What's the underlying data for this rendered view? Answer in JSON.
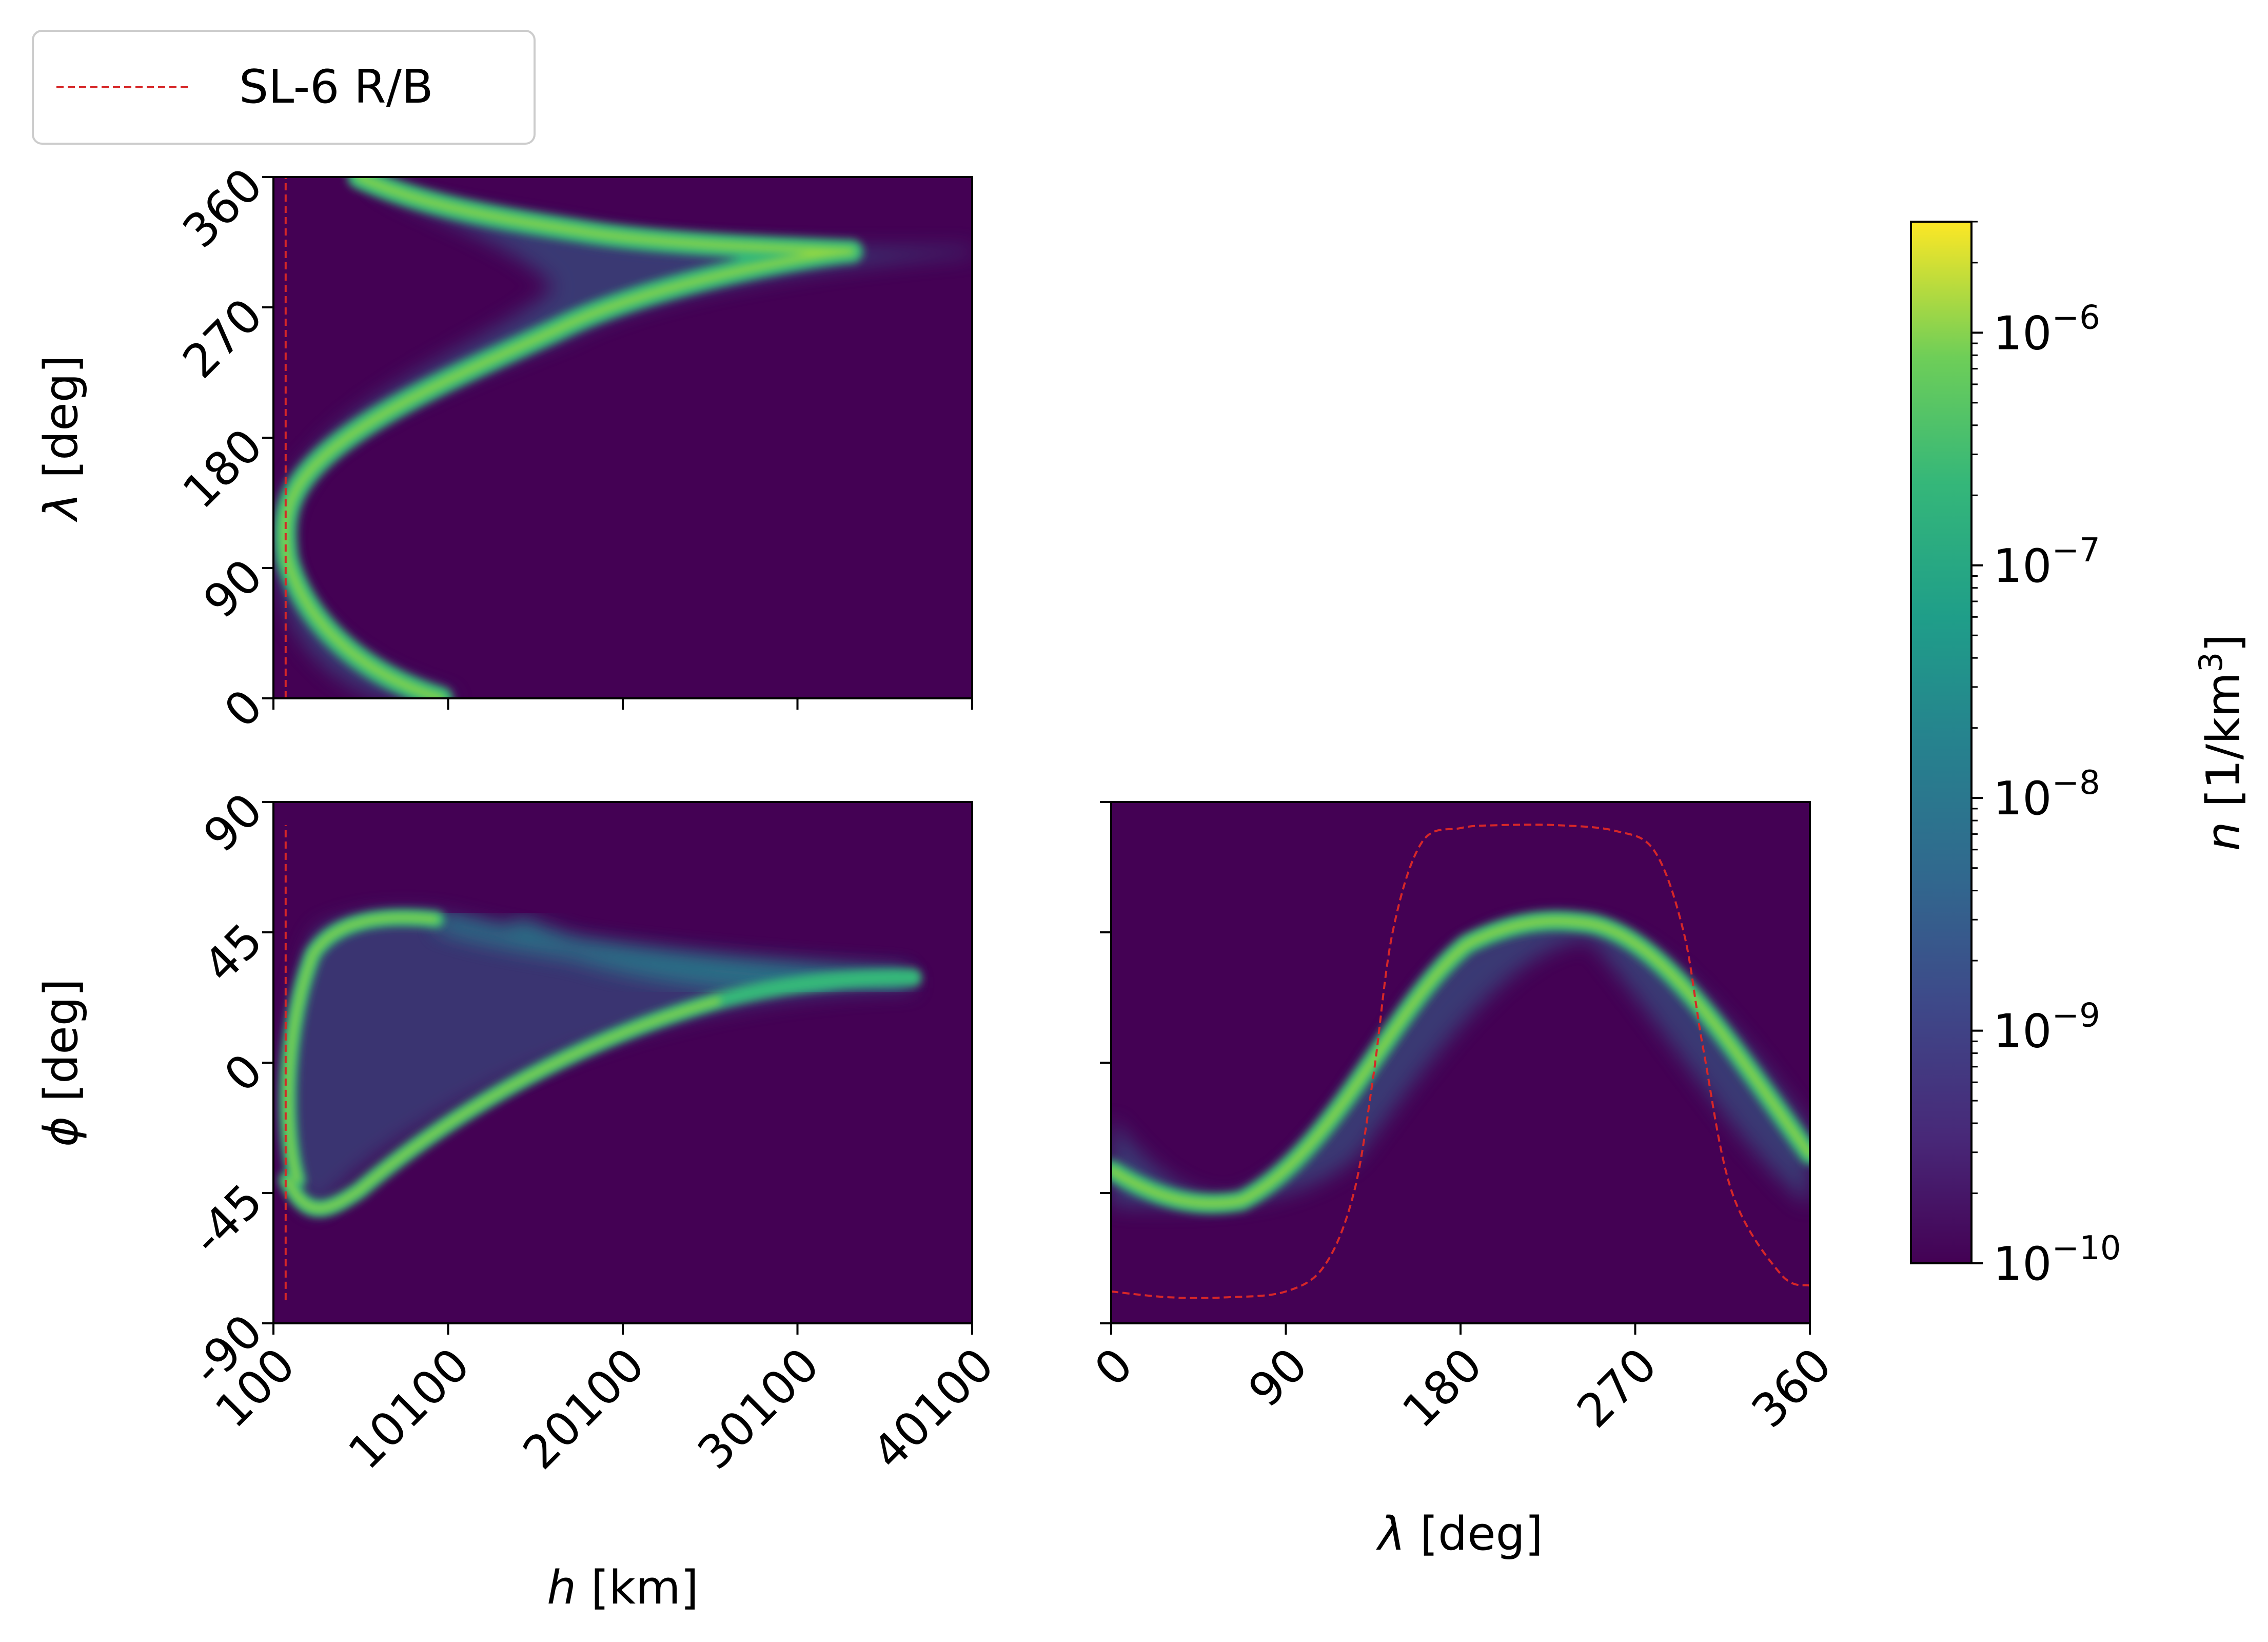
{
  "chart_data": [
    {
      "panel": "altitude-vs-longitude",
      "type": "heatmap",
      "x_label": {
        "symbol": "",
        "unit": ""
      },
      "y_label": {
        "symbol": "λ",
        "unit": "[deg]"
      },
      "xlim": [
        100,
        40100
      ],
      "ylim": [
        0,
        360
      ],
      "x_ticks": [
        100,
        10100,
        20100,
        30100,
        40100
      ],
      "x_tick_labels_visible": false,
      "y_ticks": [
        0,
        90,
        180,
        270,
        360
      ],
      "y_tick_labels": [
        "0",
        "90",
        "180",
        "270",
        "360"
      ],
      "reference_line": {
        "name": "SL-6 R/B",
        "h_km": 800,
        "lambda_range": [
          0,
          360
        ]
      }
    },
    {
      "panel": "altitude-vs-latitude",
      "type": "heatmap",
      "x_label": {
        "symbol": "h",
        "unit": "[km]"
      },
      "y_label": {
        "symbol": "ϕ",
        "unit": "[deg]"
      },
      "xlim": [
        100,
        40100
      ],
      "ylim": [
        -90,
        90
      ],
      "x_ticks": [
        100,
        10100,
        20100,
        30100,
        40100
      ],
      "x_tick_labels": [
        "100",
        "10100",
        "20100",
        "30100",
        "40100"
      ],
      "y_ticks": [
        -90,
        -45,
        0,
        45,
        90
      ],
      "y_tick_labels": [
        "-90",
        "-45",
        "0",
        "45",
        "90"
      ],
      "reference_line": {
        "name": "SL-6 R/B",
        "h_km": 800,
        "phi_range": [
          -82,
          82
        ]
      }
    },
    {
      "panel": "longitude-vs-latitude",
      "type": "heatmap",
      "x_label": {
        "symbol": "λ",
        "unit": "[deg]"
      },
      "xlim": [
        0,
        360
      ],
      "ylim": [
        -90,
        90
      ],
      "x_ticks": [
        0,
        90,
        180,
        270,
        360
      ],
      "x_tick_labels": [
        "0",
        "90",
        "180",
        "270",
        "360"
      ],
      "y_ticks": [
        -90,
        -45,
        0,
        45,
        90
      ],
      "y_tick_labels_visible": false,
      "reference_track": {
        "name": "SL-6 R/B",
        "lambda": [
          0,
          30,
          60,
          90,
          110,
          125,
          135,
          145,
          160,
          180,
          200,
          230,
          260,
          280,
          295,
          305,
          320,
          345,
          360
        ],
        "phi": [
          -79,
          -81,
          -81,
          -79,
          -70,
          -45,
          -5,
          45,
          76,
          81,
          82,
          82,
          80,
          73,
          45,
          5,
          -45,
          -73,
          -77
        ]
      }
    }
  ],
  "colorbar": {
    "label_symbol": "n",
    "label_unit": "[1/km",
    "label_unit_power": "3",
    "label_unit_close": "]",
    "scale": "log",
    "range": [
      1e-10,
      3e-06
    ],
    "ticks": [
      {
        "base": "10",
        "exp": "−10",
        "value": 1e-10
      },
      {
        "base": "10",
        "exp": "−9",
        "value": 1e-09
      },
      {
        "base": "10",
        "exp": "−8",
        "value": 1e-08
      },
      {
        "base": "10",
        "exp": "−7",
        "value": 1e-07
      },
      {
        "base": "10",
        "exp": "−6",
        "value": 1e-06
      }
    ],
    "colormap": "viridis"
  },
  "legend": {
    "position": "top-left",
    "entries": [
      {
        "label": "SL-6 R/B",
        "color": "#d62728",
        "style": "dashed"
      }
    ]
  },
  "colors": {
    "background": "#440154",
    "reference": "#d62728"
  }
}
